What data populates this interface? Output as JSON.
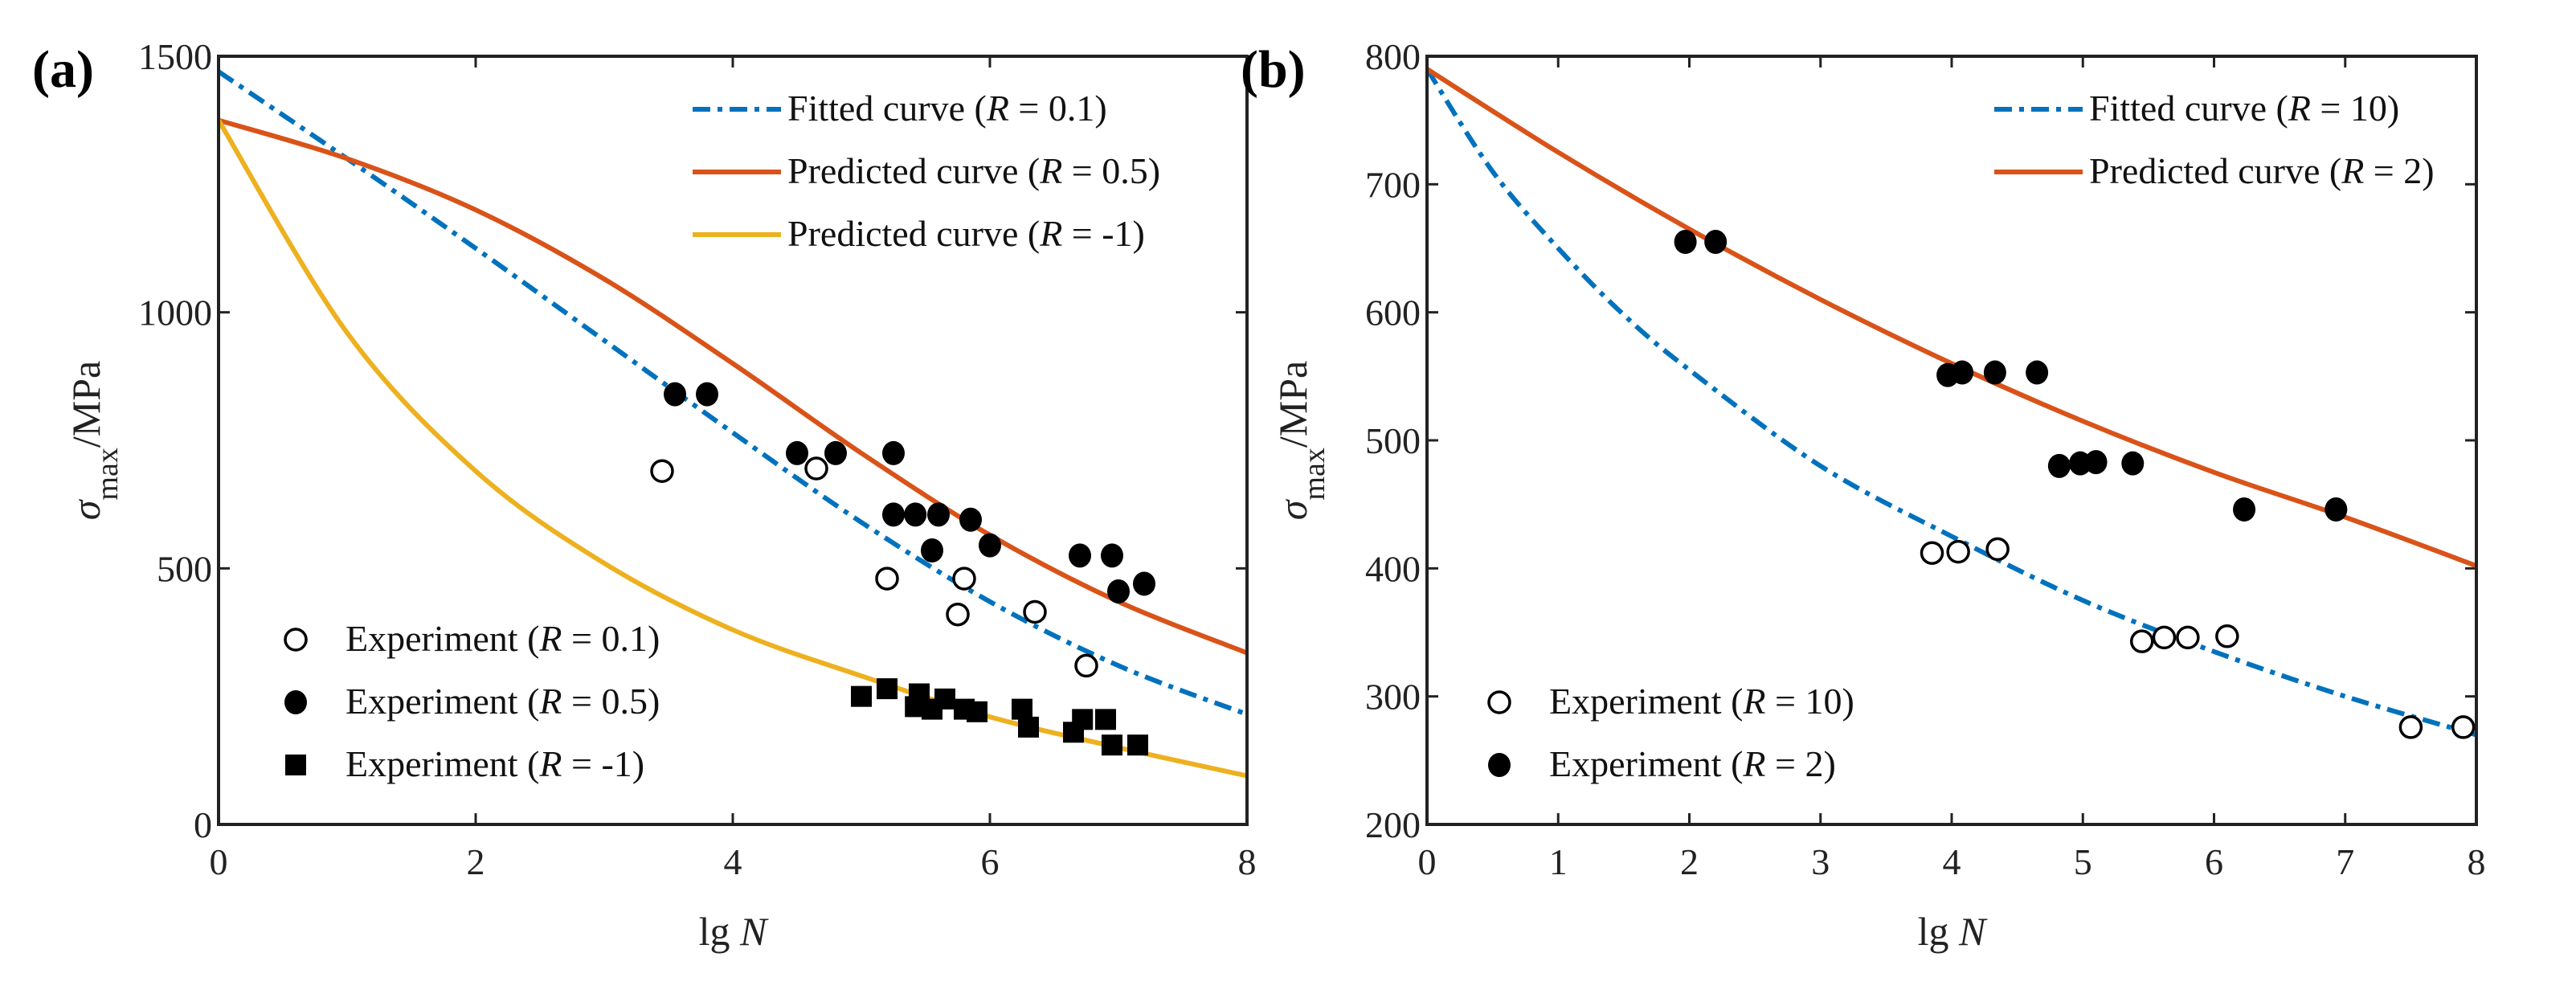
{
  "chart_data": [
    {
      "panel_label": "(a)",
      "type": "line+scatter",
      "xlabel_prefix": "lg ",
      "xlabel_var": "N",
      "ylabel_sigma": "σ",
      "ylabel_sub": "max",
      "ylabel_unit": "/MPa",
      "xlim": [
        0,
        8
      ],
      "ylim": [
        0,
        1500
      ],
      "xticks": [
        0,
        2,
        4,
        6,
        8
      ],
      "yticks": [
        0,
        500,
        1000,
        1500
      ],
      "grid": false,
      "legend_lines_placement": "top-right",
      "legend_markers_placement": "bottom-left",
      "curves": [
        {
          "name_pre": "Fitted curve (",
          "name_var": "R",
          "name_post": " = 0.1)",
          "color": "#0072BD",
          "style": "dashdot",
          "x": [
            0,
            1,
            2,
            3,
            4,
            5,
            6,
            7,
            8
          ],
          "y": [
            1470,
            1300,
            1125,
            945,
            765,
            590,
            435,
            310,
            215
          ]
        },
        {
          "name_pre": "Predicted curve (",
          "name_var": "R",
          "name_post": " = 0.5)",
          "color": "#D95319",
          "style": "solid",
          "x": [
            0,
            1,
            2,
            3,
            4,
            5,
            6,
            7,
            8
          ],
          "y": [
            1375,
            1300,
            1200,
            1065,
            900,
            725,
            565,
            435,
            335
          ]
        },
        {
          "name_pre": "Predicted curve (",
          "name_var": "R",
          "name_post": " = -1)",
          "color": "#EDB120",
          "style": "solid",
          "x": [
            0,
            1,
            2,
            3,
            4,
            5,
            6,
            7,
            8
          ],
          "y": [
            1375,
            960,
            690,
            510,
            380,
            290,
            210,
            150,
            95
          ]
        }
      ],
      "scatter": [
        {
          "name_pre": "Experiment (",
          "name_var": "R",
          "name_post": " = 0.1)",
          "marker": "open-circle",
          "x": [
            3.45,
            4.65,
            5.2,
            5.8,
            5.75,
            6.35,
            6.75
          ],
          "y": [
            690,
            695,
            480,
            480,
            410,
            415,
            310
          ]
        },
        {
          "name_pre": "Experiment (",
          "name_var": "R",
          "name_post": " = 0.5)",
          "marker": "filled-circle",
          "x": [
            3.55,
            3.8,
            4.5,
            4.8,
            5.25,
            5.25,
            5.42,
            5.6,
            5.55,
            5.85,
            6.0,
            6.7,
            6.95,
            7.0,
            7.2
          ],
          "y": [
            840,
            840,
            725,
            725,
            725,
            605,
            605,
            605,
            535,
            595,
            545,
            525,
            525,
            455,
            470
          ]
        },
        {
          "name_pre": "Experiment (",
          "name_var": "R",
          "name_post": " = -1)",
          "marker": "filled-square",
          "x": [
            5.0,
            5.2,
            5.45,
            5.42,
            5.55,
            5.65,
            5.8,
            5.9,
            6.25,
            6.3,
            6.65,
            6.72,
            6.9,
            6.95,
            7.15
          ],
          "y": [
            250,
            265,
            255,
            230,
            225,
            245,
            225,
            220,
            225,
            190,
            180,
            205,
            205,
            155,
            155
          ]
        }
      ]
    },
    {
      "panel_label": "(b)",
      "type": "line+scatter",
      "xlabel_prefix": "lg ",
      "xlabel_var": "N",
      "ylabel_sigma": "σ",
      "ylabel_sub": "max",
      "ylabel_unit": "/MPa",
      "xlim": [
        0,
        8
      ],
      "ylim": [
        200,
        800
      ],
      "xticks": [
        0,
        1,
        2,
        3,
        4,
        5,
        6,
        7,
        8
      ],
      "yticks": [
        200,
        300,
        400,
        500,
        600,
        700,
        800
      ],
      "grid": false,
      "legend_lines_placement": "top-right",
      "legend_markers_placement": "bottom-left",
      "curves": [
        {
          "name_pre": "Fitted curve (",
          "name_var": "R",
          "name_post": " = 10)",
          "color": "#0072BD",
          "style": "dashdot",
          "x": [
            0,
            0.5,
            1,
            1.5,
            2,
            3,
            4,
            5,
            6,
            7,
            8
          ],
          "y": [
            790,
            710,
            650,
            598,
            555,
            480,
            425,
            375,
            335,
            300,
            270
          ]
        },
        {
          "name_pre": "Predicted curve (",
          "name_var": "R",
          "name_post": " = 2)",
          "color": "#D95319",
          "style": "solid",
          "x": [
            0,
            1,
            2,
            3,
            4,
            5,
            6,
            7,
            8
          ],
          "y": [
            790,
            725,
            665,
            610,
            560,
            515,
            475,
            440,
            402
          ]
        }
      ],
      "scatter": [
        {
          "name_pre": "Experiment (",
          "name_var": "R",
          "name_post": " = 10)",
          "marker": "open-circle",
          "x": [
            3.85,
            4.05,
            4.35,
            5.45,
            5.62,
            5.8,
            6.1,
            7.5,
            7.9
          ],
          "y": [
            412,
            413,
            415,
            343,
            346,
            346,
            347,
            276,
            276
          ]
        },
        {
          "name_pre": "Experiment (",
          "name_var": "R",
          "name_post": " = 2)",
          "marker": "filled-circle",
          "x": [
            1.97,
            2.2,
            3.97,
            4.08,
            4.33,
            4.65,
            4.82,
            4.98,
            5.1,
            5.38,
            6.23,
            6.93
          ],
          "y": [
            655,
            655,
            551,
            553,
            553,
            553,
            480,
            482,
            483,
            482,
            446,
            446
          ]
        }
      ]
    }
  ]
}
